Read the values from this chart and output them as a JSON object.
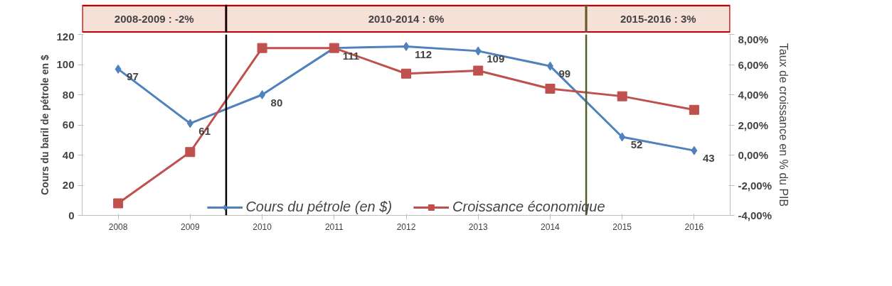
{
  "chart_data": {
    "type": "line",
    "ylabel": "Cours du baril de pétrole en $",
    "y2label": "Taux de croissance en % du PIB",
    "x": [
      2008,
      2009,
      2010,
      2011,
      2012,
      2013,
      2014,
      2015,
      2016
    ],
    "xlim": [
      2007.5,
      2016.5
    ],
    "xticks": [
      2008,
      2009,
      2010,
      2011,
      2012,
      2013,
      2014,
      2015,
      2016
    ],
    "ylim": [
      0,
      120
    ],
    "yticks": [
      0,
      20,
      40,
      60,
      80,
      100,
      120
    ],
    "y2lim": [
      -4,
      8
    ],
    "y2ticks": [
      {
        "value": -4,
        "label": "-4,00%"
      },
      {
        "value": -2,
        "label": "-2,00%"
      },
      {
        "value": 0,
        "label": "0,00%"
      },
      {
        "value": 2,
        "label": "2,00%"
      },
      {
        "value": 4,
        "label": "4,00%"
      },
      {
        "value": 6,
        "label": "6,00%"
      },
      {
        "value": 8,
        "label": "8,00%"
      }
    ],
    "series": [
      {
        "name": "Cours du pétrole (en $)",
        "color": "#4f81bd",
        "marker": "diamond",
        "data_labels": true,
        "values": [
          97,
          61,
          80,
          111,
          112,
          109,
          99,
          52,
          43
        ]
      },
      {
        "name": "Croissance économique",
        "color": "#c0504d",
        "marker": "square",
        "axis": "y2",
        "values": [
          -3.2,
          0.2,
          7.1,
          7.1,
          5.4,
          5.6,
          4.4,
          3.9,
          3.0
        ]
      }
    ],
    "ref_lines": [
      {
        "axis": "x",
        "value": 2009.5,
        "color": "#000000"
      },
      {
        "axis": "x",
        "value": 2014.5,
        "color": "#4f6228"
      }
    ],
    "annotations": [
      "2008-2009 : -2%",
      "2010-2014 : 6%",
      "2015-2016 : 3%"
    ],
    "grid": false,
    "legend": "bottom"
  }
}
